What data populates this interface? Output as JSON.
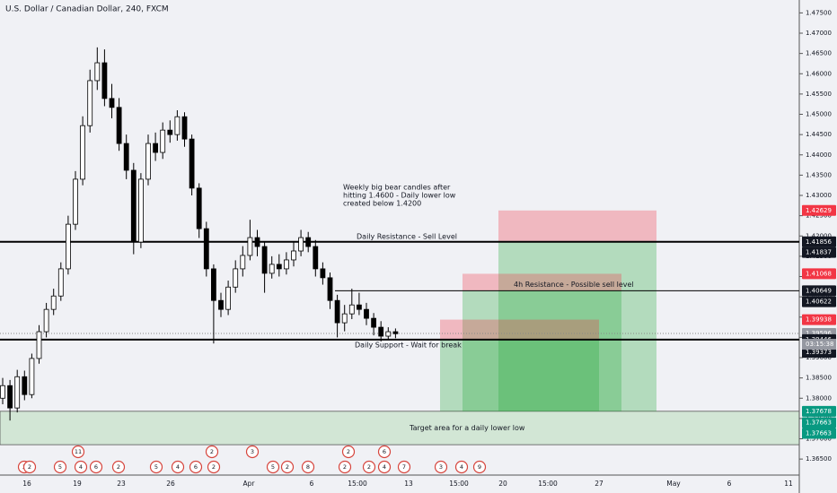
{
  "header": {
    "title": "U.S. Dollar / Canadian Dollar, 240, FXCM"
  },
  "chart_data": {
    "type": "candlestick",
    "ylim": [
      1.36282,
      1.47818
    ],
    "yticks": [
      {
        "value": 1.475,
        "label": "1.47500"
      },
      {
        "value": 1.47,
        "label": "1.47000"
      },
      {
        "value": 1.465,
        "label": "1.46500"
      },
      {
        "value": 1.46,
        "label": "1.46000"
      },
      {
        "value": 1.455,
        "label": "1.45500"
      },
      {
        "value": 1.45,
        "label": "1.45000"
      },
      {
        "value": 1.445,
        "label": "1.44500"
      },
      {
        "value": 1.44,
        "label": "1.44000"
      },
      {
        "value": 1.435,
        "label": "1.43500"
      },
      {
        "value": 1.43,
        "label": "1.43000"
      },
      {
        "value": 1.425,
        "label": "1.42500"
      },
      {
        "value": 1.42,
        "label": "1.42000"
      },
      {
        "value": 1.415,
        "label": "1.41500"
      },
      {
        "value": 1.41,
        "label": "1.41000"
      },
      {
        "value": 1.405,
        "label": "1.40500"
      },
      {
        "value": 1.4,
        "label": "1.40000"
      },
      {
        "value": 1.395,
        "label": "1.39500"
      },
      {
        "value": 1.39,
        "label": "1.39000"
      },
      {
        "value": 1.385,
        "label": "1.38500"
      },
      {
        "value": 1.38,
        "label": "1.38000"
      },
      {
        "value": 1.375,
        "label": "1.37500"
      },
      {
        "value": 1.37,
        "label": "1.37000"
      },
      {
        "value": 1.365,
        "label": "1.36500"
      }
    ],
    "x_labels": [
      "16",
      "19",
      "23",
      "26",
      "Apr",
      "6",
      "15:00",
      "13",
      "15:00",
      "20",
      "15:00",
      "27",
      "May",
      "6",
      "11"
    ],
    "open": [
      1.38,
      1.3831,
      1.3776,
      1.3853,
      1.3809,
      1.3898,
      1.3964,
      1.4019,
      1.4052,
      1.4119,
      1.4229,
      1.434,
      1.4472,
      1.4583,
      1.4627,
      1.4539,
      1.4517,
      1.4428,
      1.4362,
      1.4185,
      1.434,
      1.4428,
      1.4406,
      1.4461,
      1.445,
      1.4494,
      1.4439,
      1.4318,
      1.4218,
      1.4119,
      1.4041,
      1.4019,
      1.4074,
      1.4119,
      1.4152,
      1.4196,
      1.4174,
      1.4108,
      1.413,
      1.4119,
      1.4141,
      1.4163,
      1.4196,
      1.4174,
      1.4119,
      1.4097,
      1.4041,
      1.3986,
      1.4008,
      1.403,
      1.4019,
      1.3997,
      1.3975,
      1.3953,
      1.3964
    ],
    "high": [
      1.385,
      1.3845,
      1.387,
      1.3868,
      1.391,
      1.398,
      1.4035,
      1.407,
      1.4135,
      1.425,
      1.436,
      1.4495,
      1.461,
      1.4665,
      1.466,
      1.4575,
      1.454,
      1.445,
      1.438,
      1.4355,
      1.445,
      1.4455,
      1.448,
      1.4485,
      1.451,
      1.4505,
      1.445,
      1.433,
      1.4235,
      1.413,
      1.406,
      1.409,
      1.414,
      1.4175,
      1.424,
      1.4215,
      1.4185,
      1.415,
      1.4155,
      1.416,
      1.4185,
      1.4215,
      1.421,
      1.419,
      1.4135,
      1.411,
      1.4055,
      1.403,
      1.407,
      1.406,
      1.4035,
      1.401,
      1.399,
      1.3975,
      1.3972
    ],
    "low": [
      1.3785,
      1.3745,
      1.3765,
      1.3795,
      1.38,
      1.3885,
      1.395,
      1.4005,
      1.404,
      1.4105,
      1.4215,
      1.4325,
      1.4455,
      1.456,
      1.452,
      1.449,
      1.441,
      1.434,
      1.4155,
      1.417,
      1.4325,
      1.4385,
      1.439,
      1.443,
      1.4435,
      1.442,
      1.43,
      1.4195,
      1.41,
      1.3935,
      1.4,
      1.4005,
      1.406,
      1.41,
      1.414,
      1.415,
      1.406,
      1.4095,
      1.41,
      1.4105,
      1.4125,
      1.415,
      1.416,
      1.41,
      1.408,
      1.402,
      1.395,
      1.3965,
      1.3995,
      1.4005,
      1.398,
      1.3955,
      1.394,
      1.3945,
      1.3948
    ],
    "close": [
      1.3831,
      1.3776,
      1.3853,
      1.3809,
      1.3898,
      1.3964,
      1.4019,
      1.4052,
      1.4119,
      1.4229,
      1.434,
      1.4472,
      1.4583,
      1.4627,
      1.4539,
      1.4517,
      1.4428,
      1.4362,
      1.4185,
      1.434,
      1.4428,
      1.4406,
      1.4461,
      1.445,
      1.4494,
      1.4439,
      1.4318,
      1.4218,
      1.4119,
      1.4041,
      1.4019,
      1.4074,
      1.4119,
      1.4152,
      1.4196,
      1.4174,
      1.4108,
      1.413,
      1.4119,
      1.4141,
      1.4163,
      1.4196,
      1.4174,
      1.4119,
      1.4097,
      1.4041,
      1.3986,
      1.4008,
      1.403,
      1.4019,
      1.3997,
      1.3975,
      1.3953,
      1.3964,
      1.3959
    ],
    "current_price": 1.39596,
    "countdown": "03:15:38",
    "levels": [
      {
        "value": 1.41856,
        "label": "Daily Resistance - Sell Level"
      },
      {
        "value": 1.40649,
        "label": "4h Resistance - Possible sell level"
      },
      {
        "value": 1.39446,
        "label": "Daily Support - Wait for break"
      }
    ],
    "zones": [
      {
        "stop": 1.42629,
        "entry": 1.41856,
        "target": 1.37678
      },
      {
        "stop": 1.41068,
        "entry": 1.40649,
        "target": 1.37678
      },
      {
        "stop": 1.39938,
        "entry": 1.39446,
        "target": 1.37678
      }
    ],
    "target_area": {
      "top": 1.37678,
      "bottom": 1.36854,
      "label": "Target area for a daily lower low"
    },
    "note": [
      "Weekly big bear candles after",
      "hitting 1.4600 - Daily lower low",
      "created below 1.4200"
    ],
    "badges": [
      {
        "value": 1.42629,
        "color": "#f23645"
      },
      {
        "value": 1.41856,
        "color": "#131722"
      },
      {
        "value": 1.41837,
        "color": "#131722"
      },
      {
        "value": 1.41068,
        "color": "#f23645"
      },
      {
        "value": 1.40649,
        "color": "#131722"
      },
      {
        "value": 1.40622,
        "color": "#131722"
      },
      {
        "value": 1.39938,
        "color": "#f23645"
      },
      {
        "value": 1.39596,
        "color": "#9598a1"
      },
      {
        "value": 1.39446,
        "color": "#131722"
      },
      {
        "value": 1.39373,
        "color": "#131722"
      },
      {
        "value": 1.37678,
        "color": "#089981"
      },
      {
        "value": 1.37663,
        "color": "#089981"
      },
      {
        "value": 1.37663,
        "color": "#089981"
      }
    ],
    "events": [
      "11",
      "2",
      "3",
      "2",
      "6",
      "3",
      "2",
      "5",
      "4",
      "6",
      "2",
      "5",
      "4",
      "6",
      "2",
      "5",
      "2",
      "8",
      "2",
      "2",
      "4",
      "7",
      "3",
      "4",
      "9"
    ]
  }
}
